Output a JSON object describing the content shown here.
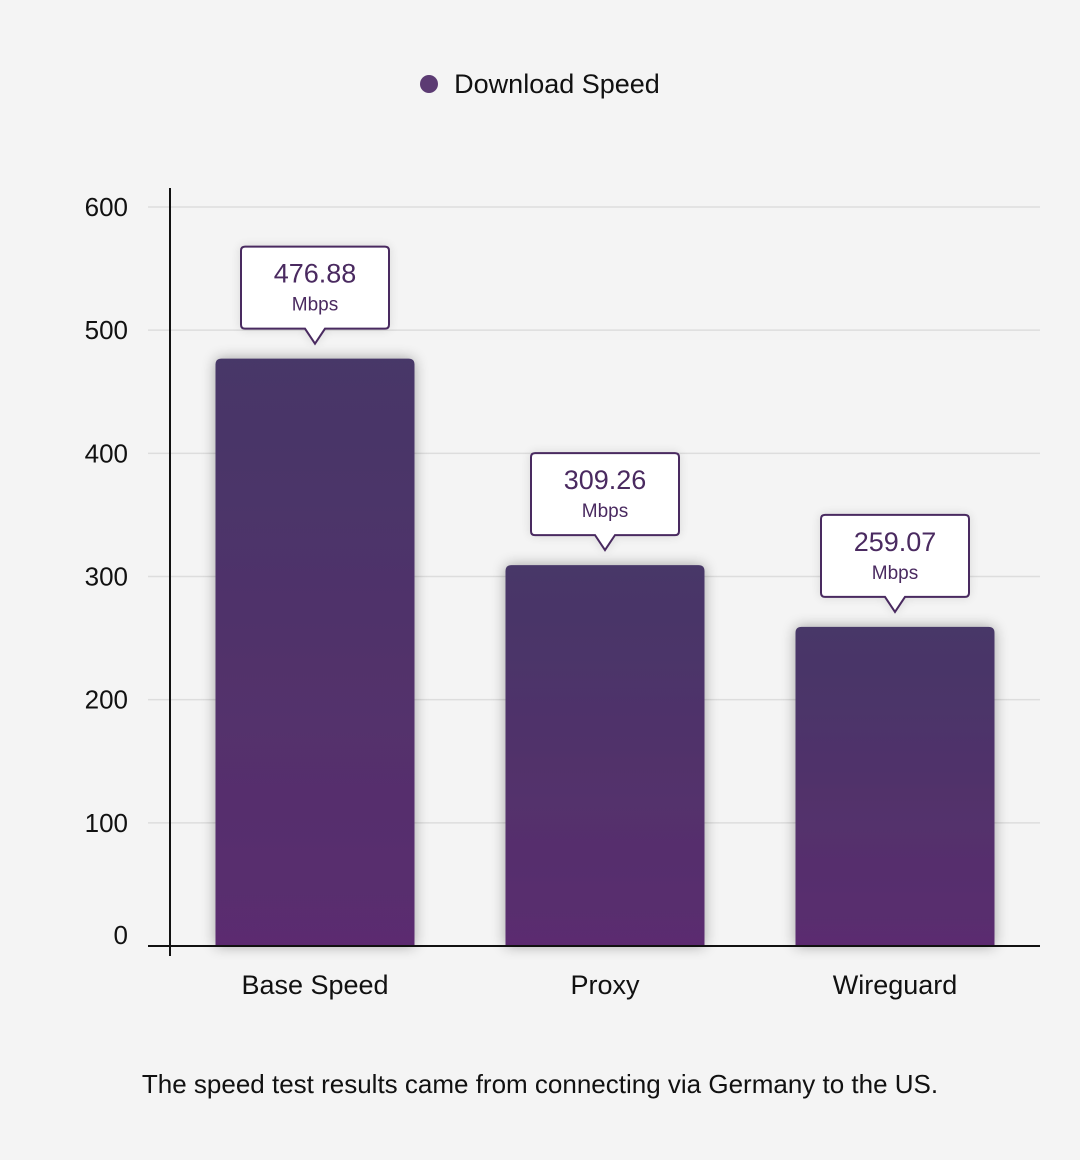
{
  "chart_data": {
    "type": "bar",
    "categories": [
      "Base Speed",
      "Proxy",
      "Wireguard"
    ],
    "series": [
      {
        "name": "Download Speed",
        "values": [
          476.88,
          309.26,
          259.07
        ]
      }
    ],
    "value_labels": [
      "476.88",
      "309.26",
      "259.07"
    ],
    "value_unit": "Mbps",
    "y_ticks": [
      "0",
      "100",
      "200",
      "300",
      "400",
      "500",
      "600"
    ],
    "ylim": [
      0,
      600
    ],
    "title": "",
    "xlabel": "",
    "ylabel": "",
    "grid": true,
    "legend_position": "top-center",
    "colors": {
      "bar_top": "#473767",
      "bar_bottom": "#5b2c6f",
      "legend_swatch": "#5c3b73",
      "callout_text": "#4a2a60",
      "callout_border": "#4a2a60",
      "grid": "#dddddd",
      "axis": "#111111"
    }
  },
  "caption": "The speed test results came from connecting via Germany to the US."
}
